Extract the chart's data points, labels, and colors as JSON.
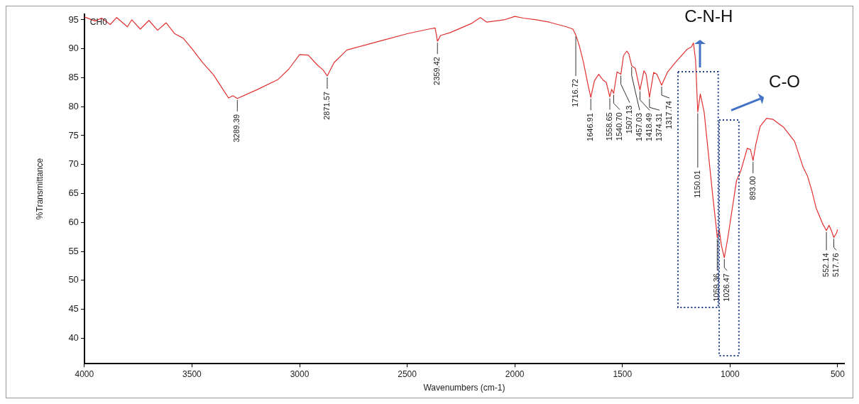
{
  "chart_data": {
    "type": "line",
    "xlabel": "Wavenumbers (cm-1)",
    "ylabel": "%Transmittance",
    "xlim": [
      4000,
      470
    ],
    "xticks": [
      4000,
      3500,
      3000,
      2500,
      2000,
      1500,
      1000,
      500
    ],
    "ylim": [
      35.6,
      96
    ],
    "yticks": [
      40,
      45,
      50,
      55,
      60,
      65,
      70,
      75,
      80,
      85,
      90,
      95
    ],
    "grid": false,
    "legend": false,
    "marker": "none",
    "line_style": "solid",
    "annotations": [
      "CH0",
      "C-N-H",
      "C-O",
      {
        "text": "3289.39",
        "x": 3289.39,
        "y": 81.4
      },
      {
        "text": "2871.57",
        "x": 2871.57,
        "y": 85.3
      },
      {
        "text": "2359.42",
        "x": 2359.42,
        "y": 91.3
      },
      {
        "text": "1716.72",
        "x": 1716.72,
        "y": 92.4
      },
      {
        "text": "1646.91",
        "x": 1646.91,
        "y": 81.6
      },
      {
        "text": "1558.65",
        "x": 1558.65,
        "y": 81.7
      },
      {
        "text": "1540.70",
        "x": 1540.7,
        "y": 82.3
      },
      {
        "text": "1507.13",
        "x": 1507.13,
        "y": 85.6
      },
      {
        "text": "1457.03",
        "x": 1457.03,
        "y": 87.1
      },
      {
        "text": "1418.49",
        "x": 1418.49,
        "y": 82.9
      },
      {
        "text": "1374.31",
        "x": 1374.31,
        "y": 81.6
      },
      {
        "text": "1317.74",
        "x": 1317.74,
        "y": 83.7
      },
      {
        "text": "1150.01",
        "x": 1150.01,
        "y": 79.1
      },
      {
        "text": "1059.36",
        "x": 1059.36,
        "y": 57.4
      },
      {
        "text": "1026.47",
        "x": 1026.47,
        "y": 53.9
      },
      {
        "text": "893.00",
        "x": 893.0,
        "y": 70.7
      },
      {
        "text": "552.14",
        "x": 552.14,
        "y": 58.6
      },
      {
        "text": "517.76",
        "x": 517.76,
        "y": 57.4
      }
    ],
    "x": [
      4000,
      3950,
      3920,
      3880,
      3850,
      3800,
      3780,
      3740,
      3700,
      3660,
      3620,
      3580,
      3540,
      3500,
      3450,
      3400,
      3360,
      3330,
      3310,
      3289.39,
      3200,
      3100,
      3050,
      3000,
      2960,
      2920,
      2890,
      2871.57,
      2840,
      2780,
      2700,
      2600,
      2500,
      2400,
      2370,
      2359.42,
      2345,
      2300,
      2200,
      2160,
      2130,
      2050,
      2000,
      1960,
      1900,
      1840,
      1800,
      1760,
      1730,
      1716.72,
      1700,
      1680,
      1660,
      1646.91,
      1630,
      1610,
      1590,
      1575,
      1558.65,
      1550,
      1540.7,
      1525,
      1507.13,
      1495,
      1480,
      1470,
      1457.03,
      1440,
      1418.49,
      1400,
      1390,
      1374.31,
      1355,
      1340,
      1317.74,
      1290,
      1250,
      1200,
      1180,
      1170,
      1160,
      1150.01,
      1138,
      1120,
      1100,
      1080,
      1065,
      1059.36,
      1050,
      1040,
      1026.47,
      1010,
      990,
      970,
      950,
      920,
      905,
      893.0,
      880,
      860,
      830,
      800,
      750,
      700,
      660,
      640,
      620,
      600,
      570,
      552.14,
      540,
      530,
      517.76,
      505,
      500
    ],
    "series": [
      {
        "color": "#e03030",
        "values": [
          95.5,
          94.8,
          95.3,
          94.2,
          95.4,
          93.8,
          95.0,
          93.4,
          94.9,
          93.2,
          94.5,
          92.6,
          91.8,
          90.0,
          87.6,
          85.5,
          83.2,
          81.5,
          81.9,
          81.4,
          82.9,
          84.7,
          86.5,
          89.0,
          88.9,
          87.3,
          86.3,
          85.3,
          87.6,
          89.8,
          90.6,
          91.6,
          92.6,
          93.4,
          93.6,
          91.3,
          92.3,
          92.8,
          94.4,
          95.4,
          94.6,
          95.0,
          95.6,
          95.3,
          95.0,
          94.6,
          94.2,
          93.8,
          93.4,
          92.4,
          90.5,
          87.5,
          83.8,
          81.6,
          84.5,
          85.6,
          84.6,
          84.2,
          81.7,
          83.0,
          82.3,
          86.0,
          85.6,
          88.8,
          89.6,
          89.1,
          87.1,
          86.6,
          82.9,
          86.2,
          85.6,
          81.6,
          85.9,
          85.6,
          83.7,
          86.0,
          87.8,
          89.9,
          90.3,
          91.0,
          88.0,
          79.1,
          82.2,
          79.0,
          71.7,
          64.5,
          59.5,
          57.4,
          58.7,
          56.0,
          53.9,
          57.4,
          62.3,
          67.2,
          68.9,
          72.8,
          72.6,
          70.7,
          73.5,
          76.6,
          78.0,
          77.8,
          76.4,
          74.0,
          69.5,
          68.0,
          65.5,
          62.5,
          59.8,
          58.6,
          59.5,
          58.7,
          57.4,
          58.2,
          58.8
        ]
      }
    ]
  }
}
